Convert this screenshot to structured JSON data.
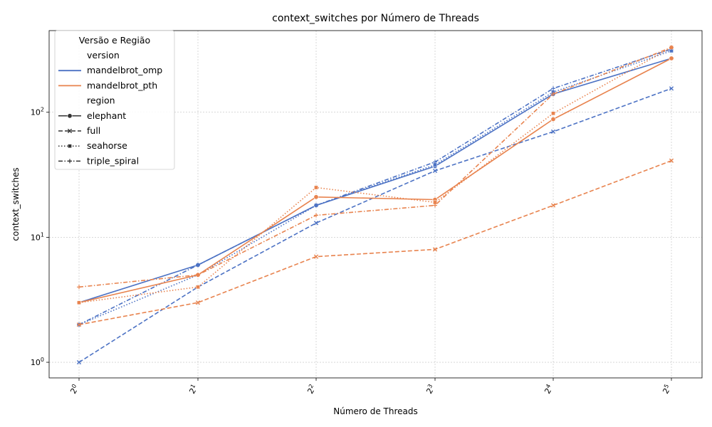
{
  "chart_data": {
    "type": "line",
    "title": "context_switches por Número de Threads",
    "xlabel": "Número de Threads",
    "ylabel": "context_switches",
    "x": [
      1,
      2,
      4,
      8,
      16,
      32
    ],
    "x_tick_labels": [
      {
        "base": "2",
        "exp": "0"
      },
      {
        "base": "2",
        "exp": "1"
      },
      {
        "base": "2",
        "exp": "2"
      },
      {
        "base": "2",
        "exp": "3"
      },
      {
        "base": "2",
        "exp": "4"
      },
      {
        "base": "2",
        "exp": "5"
      }
    ],
    "x_scale": "log2",
    "y_scale": "log10",
    "ylim": [
      0.75,
      450
    ],
    "y_ticks": [
      {
        "value": 1,
        "base": "10",
        "exp": "0"
      },
      {
        "value": 10,
        "base": "10",
        "exp": "1"
      },
      {
        "value": 100,
        "base": "10",
        "exp": "2"
      }
    ],
    "grid": true,
    "legend": {
      "title": "Versão e Região",
      "placement": "top-left",
      "version_header": "version",
      "region_header": "region",
      "versions": [
        {
          "name": "mandelbrot_omp",
          "color": "#4c72c4"
        },
        {
          "name": "mandelbrot_pth",
          "color": "#e8834e"
        }
      ],
      "regions": [
        {
          "name": "elephant",
          "dash": "solid",
          "marker": "circle"
        },
        {
          "name": "full",
          "dash": "dashed",
          "marker": "x"
        },
        {
          "name": "seahorse",
          "dash": "dotted",
          "marker": "square"
        },
        {
          "name": "triple_spiral",
          "dash": "dashdot",
          "marker": "plus"
        }
      ]
    },
    "series": [
      {
        "name": "mandelbrot_omp elephant",
        "version": "mandelbrot_omp",
        "region": "elephant",
        "values": [
          3,
          6,
          18,
          37,
          140,
          270
        ]
      },
      {
        "name": "mandelbrot_omp full",
        "version": "mandelbrot_omp",
        "region": "full",
        "values": [
          1,
          4,
          13,
          34,
          70,
          155
        ]
      },
      {
        "name": "mandelbrot_omp seahorse",
        "version": "mandelbrot_omp",
        "region": "seahorse",
        "values": [
          2,
          5,
          18,
          38,
          145,
          310
        ]
      },
      {
        "name": "mandelbrot_omp triple_spiral",
        "version": "mandelbrot_omp",
        "region": "triple_spiral",
        "values": [
          2,
          6,
          18,
          40,
          155,
          320
        ]
      },
      {
        "name": "mandelbrot_pth elephant",
        "version": "mandelbrot_pth",
        "region": "elephant",
        "values": [
          3,
          5,
          21,
          20,
          88,
          270
        ]
      },
      {
        "name": "mandelbrot_pth full",
        "version": "mandelbrot_pth",
        "region": "full",
        "values": [
          2,
          3,
          7,
          8,
          18,
          41
        ]
      },
      {
        "name": "mandelbrot_pth seahorse",
        "version": "mandelbrot_pth",
        "region": "seahorse",
        "values": [
          3,
          4,
          25,
          19,
          98,
          330
        ]
      },
      {
        "name": "mandelbrot_pth triple_spiral",
        "version": "mandelbrot_pth",
        "region": "triple_spiral",
        "values": [
          4,
          5,
          15,
          18,
          140,
          330
        ]
      }
    ]
  }
}
